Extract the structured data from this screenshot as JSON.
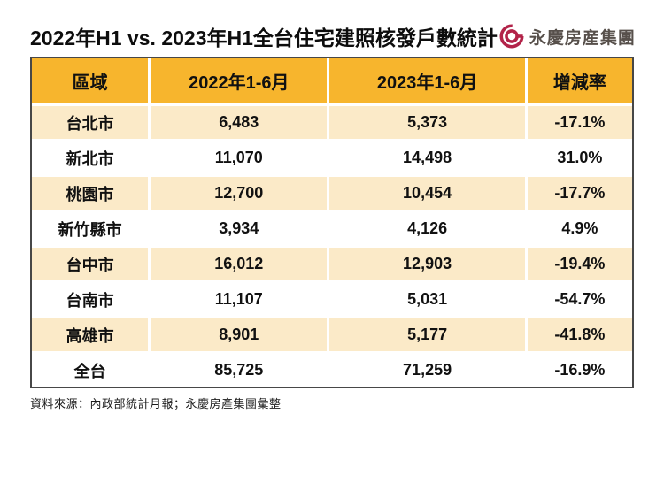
{
  "header": {
    "title": "2022年H1 vs. 2023年H1全台住宅建照核發戶數統計",
    "logo": {
      "text": "永慶房産集團",
      "mark_color": "#b22349",
      "text_color": "#57504b"
    }
  },
  "table": {
    "columns": [
      "區域",
      "2022年1-6月",
      "2023年1-6月",
      "增減率"
    ],
    "rows": [
      [
        "台北市",
        "6,483",
        "5,373",
        "-17.1%"
      ],
      [
        "新北市",
        "11,070",
        "14,498",
        "31.0%"
      ],
      [
        "桃園市",
        "12,700",
        "10,454",
        "-17.7%"
      ],
      [
        "新竹縣市",
        "3,934",
        "4,126",
        "4.9%"
      ],
      [
        "台中市",
        "16,012",
        "12,903",
        "-19.4%"
      ],
      [
        "台南市",
        "11,107",
        "5,031",
        "-54.7%"
      ],
      [
        "高雄市",
        "8,901",
        "5,177",
        "-41.8%"
      ],
      [
        "全台",
        "85,725",
        "71,259",
        "-16.9%"
      ]
    ]
  },
  "footer": {
    "source_note": "資料來源：內政部統計月報；永慶房產集團彙整"
  },
  "colors": {
    "header_bg": "#f7b52d",
    "row_stripe_bg": "#fbeac8",
    "row_plain_bg": "#ffffff",
    "table_border": "#474747",
    "text": "#111111",
    "logo_red": "#b22349",
    "logo_text": "#57504b"
  },
  "chart_data": {
    "type": "table",
    "title": "2022年H1 vs. 2023年H1全台住宅建照核發戶數統計",
    "columns": [
      "區域",
      "2022年1-6月",
      "2023年1-6月",
      "增減率"
    ],
    "rows": [
      {
        "region": "台北市",
        "h1_2022": 6483,
        "h1_2023": 5373,
        "change_pct": -17.1
      },
      {
        "region": "新北市",
        "h1_2022": 11070,
        "h1_2023": 14498,
        "change_pct": 31.0
      },
      {
        "region": "桃園市",
        "h1_2022": 12700,
        "h1_2023": 10454,
        "change_pct": -17.7
      },
      {
        "region": "新竹縣市",
        "h1_2022": 3934,
        "h1_2023": 4126,
        "change_pct": 4.9
      },
      {
        "region": "台中市",
        "h1_2022": 16012,
        "h1_2023": 12903,
        "change_pct": -19.4
      },
      {
        "region": "台南市",
        "h1_2022": 11107,
        "h1_2023": 5031,
        "change_pct": -54.7
      },
      {
        "region": "高雄市",
        "h1_2022": 8901,
        "h1_2023": 5177,
        "change_pct": -41.8
      },
      {
        "region": "全台",
        "h1_2022": 85725,
        "h1_2023": 71259,
        "change_pct": -16.9
      }
    ],
    "source": "資料來源：內政部統計月報；永慶房產集團彙整"
  }
}
